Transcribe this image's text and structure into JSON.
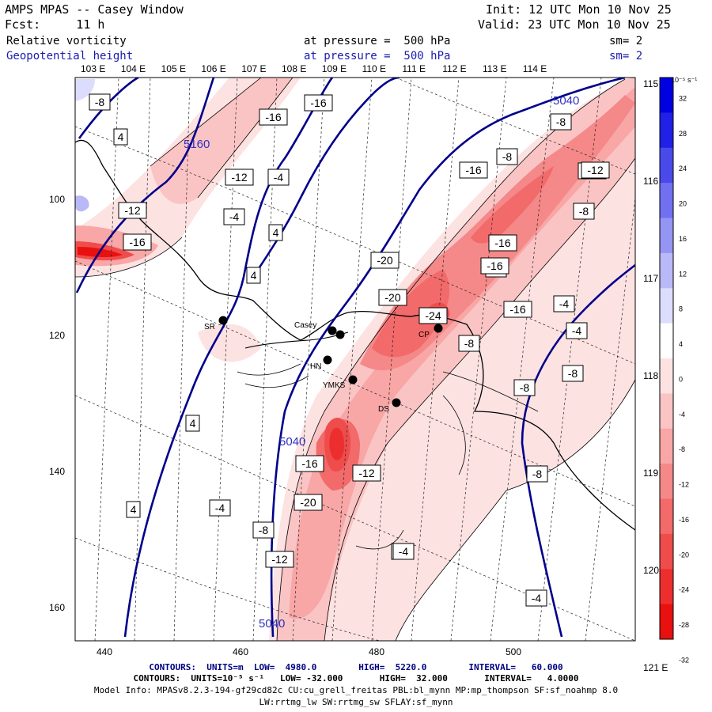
{
  "header": {
    "title": "AMPS MPAS -- Casey Window",
    "fcst": "Fcst:     11 h",
    "init": "Init: 12 UTC Mon 10 Nov 25",
    "valid": "Valid: 23 UTC Mon 10 Nov 25",
    "field1_name": "Relative vorticity",
    "field1_level": "at pressure =  500 hPa",
    "field1_sm": "sm= 2",
    "field2_name": "Geopotential height",
    "field2_level": "at pressure =  500 hPa",
    "field2_sm": "sm= 2"
  },
  "top_lon_labels": [
    "103 E",
    "104 E",
    "105 E",
    "106 E",
    "107 E",
    "108 E",
    "109 E",
    "110 E",
    "111 E",
    "112 E",
    "113 E",
    "114 E"
  ],
  "right_lon_labels": [
    "115 E",
    "116 E",
    "117 E",
    "118 E",
    "119 E",
    "120 E",
    "121 E"
  ],
  "x_ticks": [
    "440",
    "460",
    "480",
    "500"
  ],
  "y_ticks": [
    "100",
    "120",
    "140",
    "160"
  ],
  "stations": [
    {
      "name": "Casey"
    },
    {
      "name": "SR"
    },
    {
      "name": "HN"
    },
    {
      "name": "YMKS"
    },
    {
      "name": "DS"
    },
    {
      "name": "CP"
    }
  ],
  "vort_labels": [
    "-8",
    "4",
    "-16",
    "-16",
    "5160",
    "-16",
    "-12",
    "-4",
    "-12",
    "-4",
    "-8",
    "-12",
    "-8",
    "-16",
    "-8",
    "4",
    "-16",
    "4",
    "-20",
    "-20",
    "-8",
    "-16",
    "-24",
    "-8",
    "-4",
    "-4",
    "-8",
    "4",
    "-8",
    "-8",
    "5040",
    "-16",
    "-12",
    "4",
    "-20",
    "-4",
    "-4",
    "-8",
    "-12",
    "-4",
    "-4",
    "5040",
    "5040",
    "-16",
    "-12"
  ],
  "colorbar": {
    "unit": "10⁻⁵ s⁻¹",
    "labels": [
      "32",
      "28",
      "24",
      "20",
      "16",
      "12",
      "8",
      "4",
      "0",
      "-4",
      "-8",
      "-12",
      "-16",
      "-20",
      "-24",
      "-28",
      "-32"
    ],
    "colors": {
      "pos": [
        "#0000e0",
        "#2020e6",
        "#4a4aeb",
        "#7070f0",
        "#9595f4",
        "#b9b9f8",
        "#dcdcfc"
      ],
      "neg": [
        "#fde2e2",
        "#fbc4c4",
        "#f8a6a6",
        "#f58888",
        "#f26a6a",
        "#ef4c4c",
        "#ec2e2e",
        "#e91010"
      ]
    }
  },
  "footer": {
    "line1": "CONTOURS:  UNITS=m  LOW=  4980.0        HIGH=  5220.0        INTERVAL=   60.000",
    "line2": "CONTOURS:  UNITS=10⁻⁵ s⁻¹   LOW= -32.000       HIGH=  32.000       INTERVAL=   4.0000",
    "line3": "Model Info: MPASv8.2.3-194-gf29cd82c CU:cu_grell_freitas PBL:bl_mynn MP:mp_thompson SF:sf_noahmp 8.0",
    "line4": "LW:rrtmg_lw SW:rrtmg_sw SFLAY:sf_mynn"
  }
}
